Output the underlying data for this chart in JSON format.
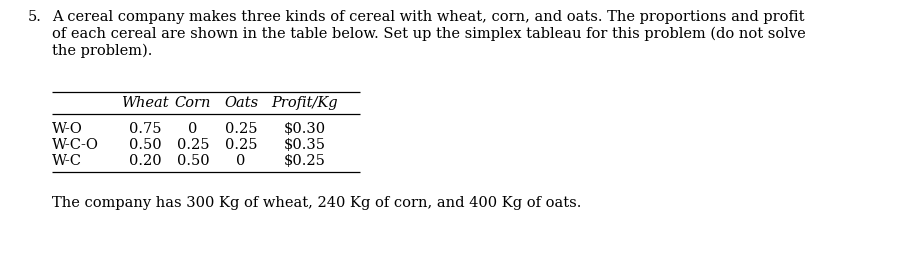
{
  "title_number": "5.",
  "para_line1": "A cereal company makes three kinds of cereal with wheat, corn, and oats. The proportions and profit",
  "para_line2": "of each cereal are shown in the table below. Set up the simplex tableau for this problem (do not solve",
  "para_line3": "the problem).",
  "col_headers": [
    "",
    "Wheat",
    "Corn",
    "Oats",
    "Profit/Kg"
  ],
  "rows": [
    [
      "W-O",
      "0.75",
      "0",
      "0.25",
      "$0.30"
    ],
    [
      "W-C-O",
      "0.50",
      "0.25",
      "0.25",
      "$0.35"
    ],
    [
      "W-C",
      "0.20",
      "0.50",
      "0",
      "$0.25"
    ]
  ],
  "footer": "The company has 300 Kg of wheat, 240 Kg of corn, and 400 Kg of oats.",
  "bg_color": "#ffffff",
  "text_color": "#000000",
  "font_size": 10.5
}
